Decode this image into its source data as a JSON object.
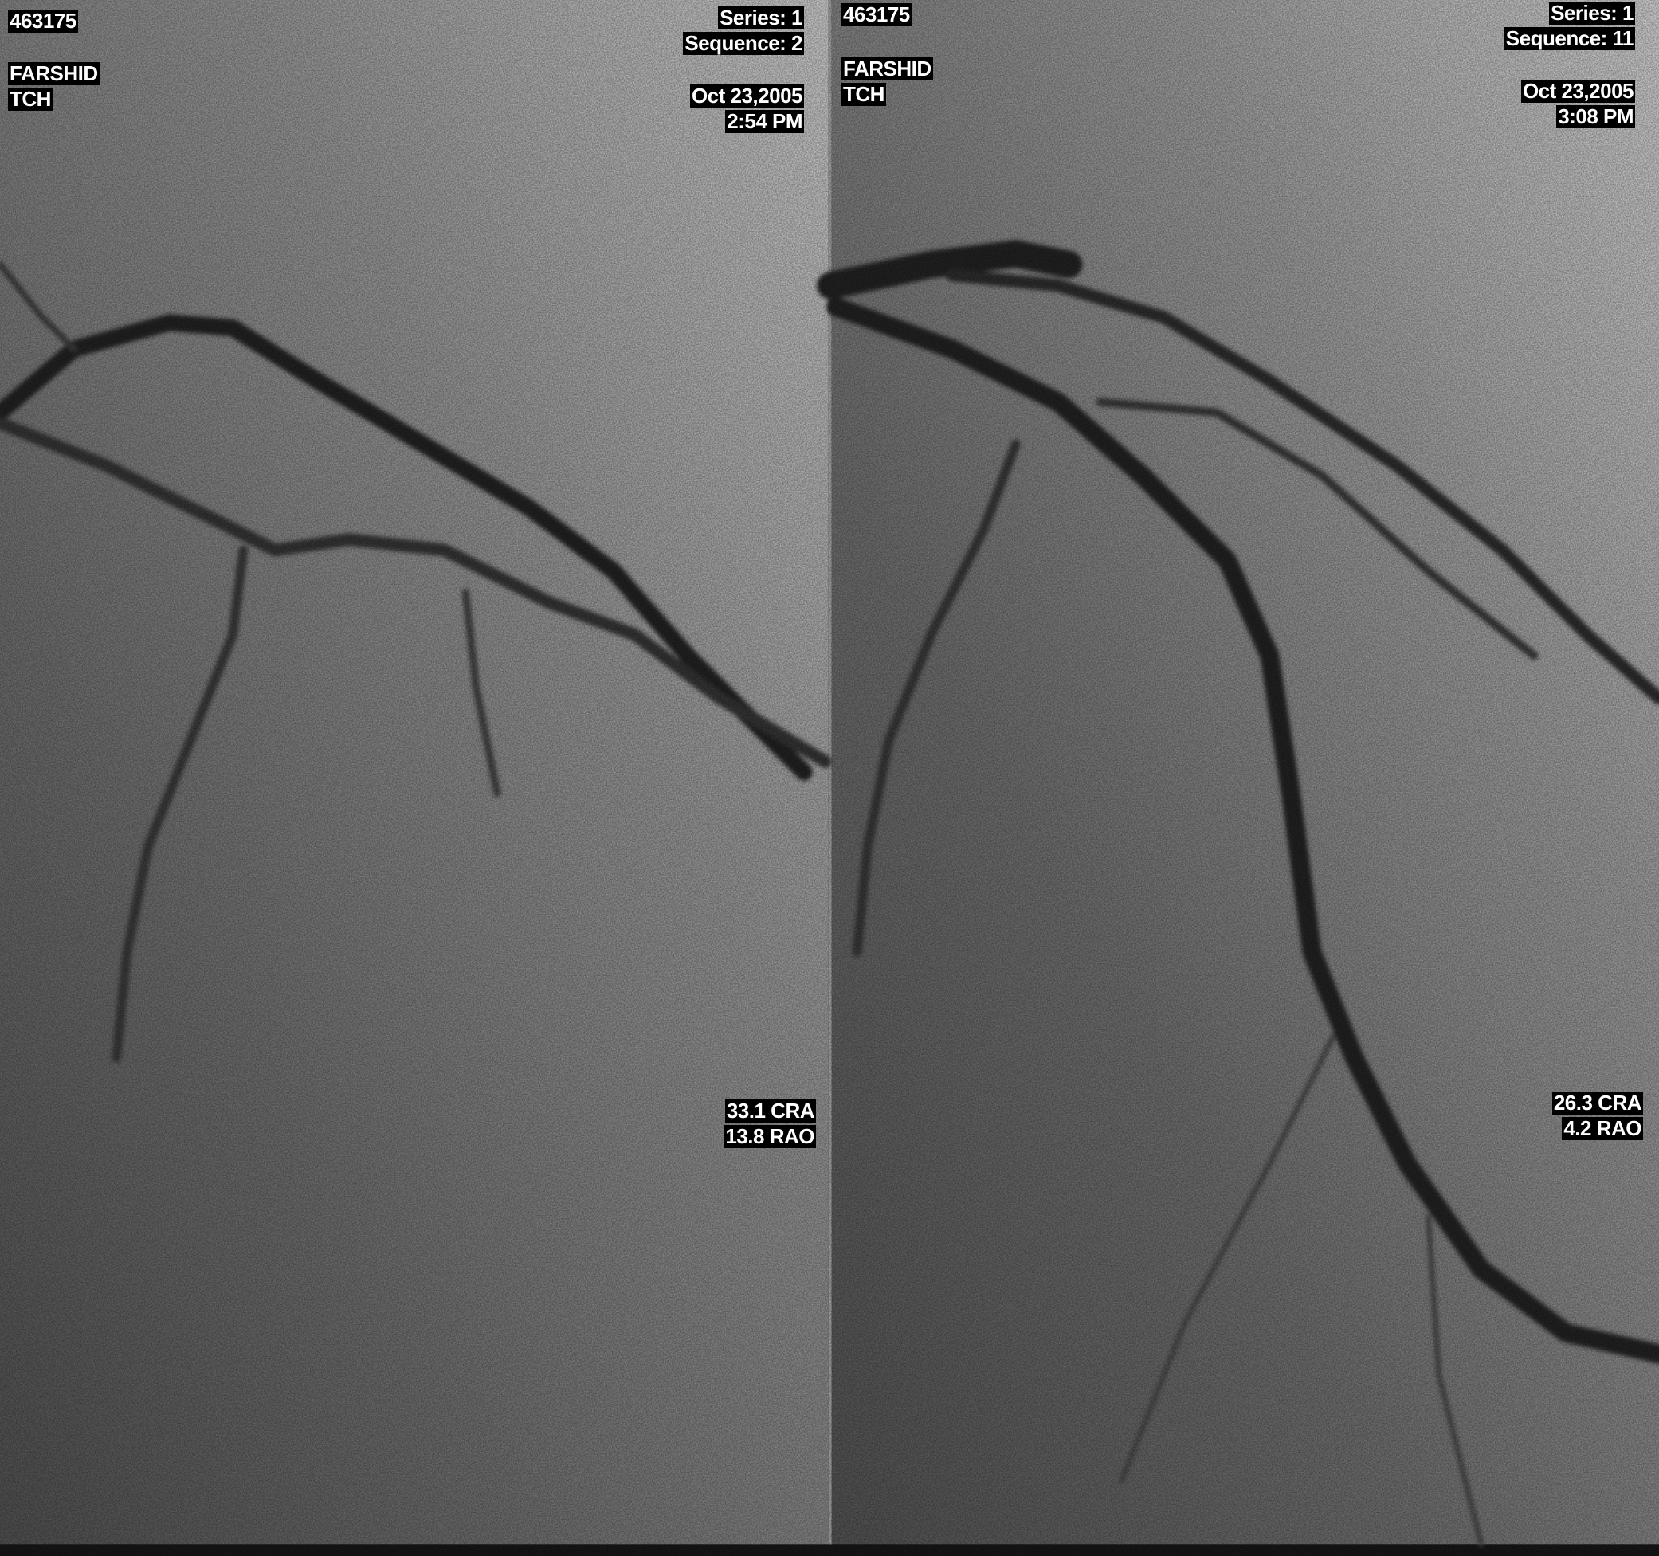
{
  "panels": [
    {
      "patient_id": "463175",
      "patient_name": "FARSHID",
      "institution": "TCH",
      "series": "Series: 1",
      "sequence": "Sequence: 2",
      "date": "Oct 23,2005",
      "time": "2:54 PM",
      "angle_cra": "33.1 CRA",
      "angle_rao": "13.8 RAO"
    },
    {
      "patient_id": "463175",
      "patient_name": "FARSHID",
      "institution": "TCH",
      "series": "Series: 1",
      "sequence": "Sequence: 11",
      "date": "Oct 23,2005",
      "time": "3:08 PM",
      "angle_cra": "26.3 CRA",
      "angle_rao": "4.2 RAO"
    }
  ]
}
